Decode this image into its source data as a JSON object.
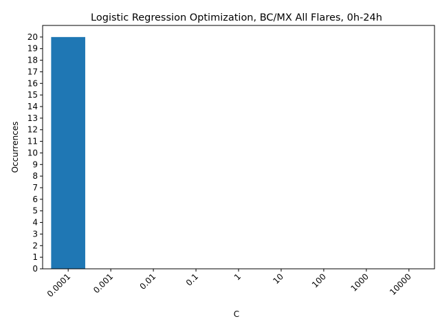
{
  "chart_data": {
    "type": "bar",
    "title": "Logistic Regression Optimization, BC/MX All Flares, 0h-24h",
    "xlabel": "C",
    "ylabel": "Occurrences",
    "categories": [
      "0.0001",
      "0.001",
      "0.01",
      "0.1",
      "1",
      "10",
      "100",
      "1000",
      "10000"
    ],
    "values": [
      20,
      0,
      0,
      0,
      0,
      0,
      0,
      0,
      0
    ],
    "ylim": [
      0,
      21
    ],
    "yticks": [
      "0",
      "1",
      "2",
      "3",
      "4",
      "5",
      "6",
      "7",
      "8",
      "9",
      "10",
      "11",
      "12",
      "13",
      "14",
      "15",
      "16",
      "17",
      "18",
      "19",
      "20"
    ],
    "xtick_rotation": 45,
    "bar_color": "#1f77b4",
    "grid": false,
    "legend": "none"
  }
}
